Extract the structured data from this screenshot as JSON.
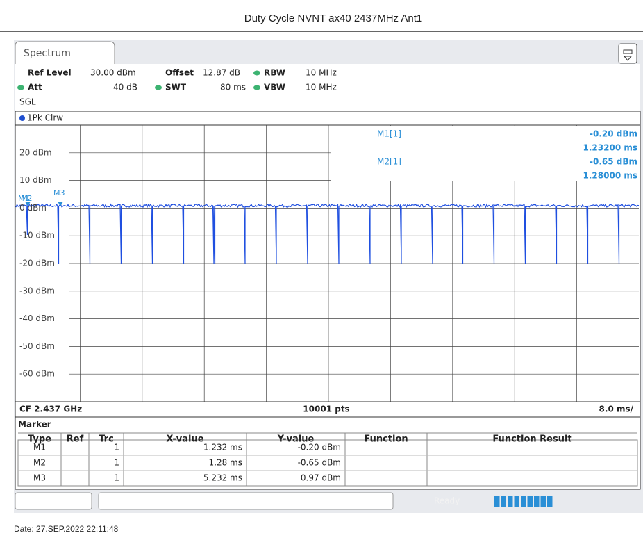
{
  "title": "Duty Cycle NVNT ax40 2437MHz Ant1",
  "tab": "Spectrum",
  "settings": {
    "ref_level_label": "Ref Level",
    "ref_level": "30.00 dBm",
    "offset_label": "Offset",
    "offset": "12.87 dB",
    "rbw_label": "RBW",
    "rbw": "10 MHz",
    "att_label": "Att",
    "att": "40 dB",
    "swt_label": "SWT",
    "swt": "80 ms",
    "vbw_label": "VBW",
    "vbw": "10 MHz",
    "mode": "SGL"
  },
  "trace_label": "1Pk Clrw",
  "y_axis_labels": [
    "20 dBm",
    "10 dBm",
    "0 dBm",
    "-10 dBm",
    "-20 dBm",
    "-30 dBm",
    "-40 dBm",
    "-50 dBm",
    "-60 dBm"
  ],
  "marker_info": [
    {
      "name": "M1[1]",
      "level": "-0.20 dBm",
      "time": "1.23200 ms"
    },
    {
      "name": "M2[1]",
      "level": "-0.65 dBm",
      "time": "1.28000 ms"
    }
  ],
  "marker_flags": [
    "M1",
    "M2",
    "M3"
  ],
  "footer": {
    "center_freq": "CF 2.437 GHz",
    "points": "10001 pts",
    "scale": "8.0 ms/"
  },
  "marker_table": {
    "title": "Marker",
    "columns": [
      "Type",
      "Ref",
      "Trc",
      "X-value",
      "Y-value",
      "Function",
      "Function Result"
    ],
    "rows": [
      [
        "M1",
        "",
        "1",
        "1.232 ms",
        "-0.20 dBm",
        "",
        ""
      ],
      [
        "M2",
        "",
        "1",
        "1.28 ms",
        "-0.65 dBm",
        "",
        ""
      ],
      [
        "M3",
        "",
        "1",
        "5.232 ms",
        "0.97 dBm",
        "",
        ""
      ]
    ]
  },
  "status": "Ready",
  "date": "Date: 27.SEP.2022  22:11:48"
}
